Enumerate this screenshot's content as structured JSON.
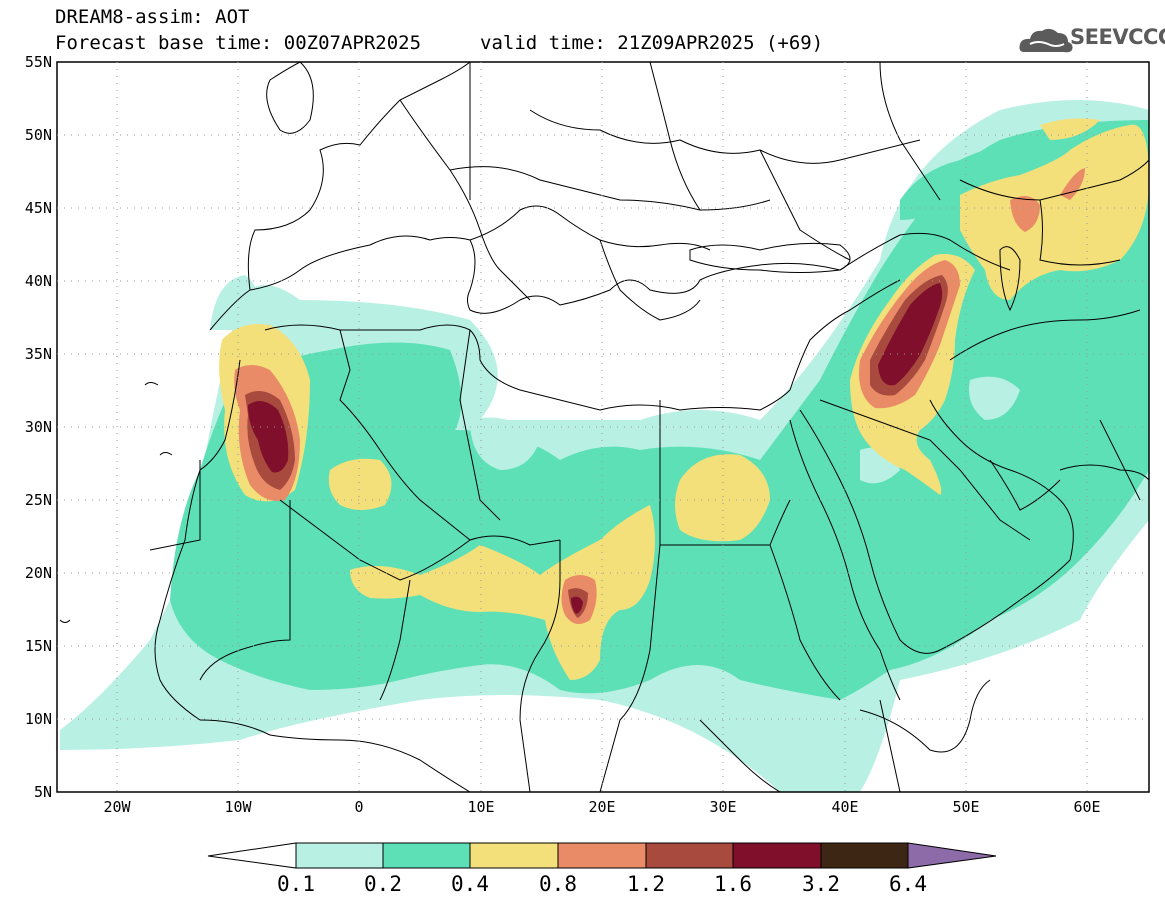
{
  "header": {
    "title": "DREAM8-assim: AOT",
    "base_time": "Forecast base time: 00Z07APR2025",
    "valid_time": "valid time: 21Z09APR2025 (+69)"
  },
  "logo": {
    "text": "SEEVCCC",
    "icon": "cloud-icon"
  },
  "map": {
    "lon_range": [
      -25,
      65
    ],
    "lat_range": [
      5,
      55
    ],
    "lat_ticks": [
      "5N",
      "10N",
      "15N",
      "20N",
      "25N",
      "30N",
      "35N",
      "40N",
      "45N",
      "50N",
      "55N"
    ],
    "lon_ticks": [
      "20W",
      "10W",
      "0",
      "10E",
      "20E",
      "30E",
      "40E",
      "50E",
      "60E"
    ]
  },
  "colorbar": {
    "labels": [
      "0.1",
      "0.2",
      "0.4",
      "0.8",
      "1.2",
      "1.6",
      "3.2",
      "6.4"
    ],
    "colors": [
      "#ffffff",
      "#b9f0e4",
      "#5ee0b6",
      "#f3e07a",
      "#e88b66",
      "#a94a3f",
      "#7f0f2a",
      "#3e2615",
      "#8c6ba8"
    ]
  }
}
